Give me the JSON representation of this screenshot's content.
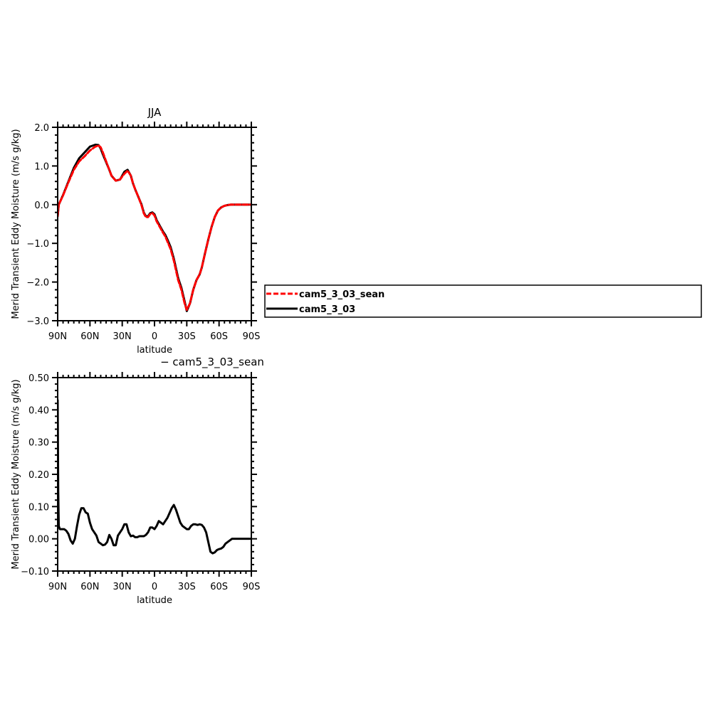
{
  "chart_data": [
    {
      "type": "line",
      "title": "JJA",
      "xlabel": "latitude",
      "ylabel": "Merid Transient Eddy Moisture (m/s g/kg)",
      "xlim": [
        90,
        -90
      ],
      "ylim": [
        -3.0,
        2.0
      ],
      "xticks": [
        90,
        60,
        30,
        0,
        -30,
        -60,
        -90
      ],
      "xtick_labels": [
        "90N",
        "60N",
        "30N",
        "0",
        "30S",
        "60S",
        "90S"
      ],
      "yticks": [
        -3.0,
        -2.0,
        -1.0,
        0.0,
        1.0,
        2.0
      ],
      "ytick_labels": [
        "−3.0",
        "−2.0",
        "−1.0",
        "0.0",
        "1.0",
        "2.0"
      ],
      "legend": "right",
      "series": [
        {
          "name": "cam5_3_03",
          "color": "#000000",
          "x": [
            90,
            89,
            85,
            80,
            75,
            70,
            65,
            60,
            55,
            52,
            50,
            48,
            45,
            42,
            40,
            36,
            32,
            30,
            28,
            25,
            22,
            20,
            18,
            15,
            12,
            10,
            8,
            6,
            4,
            2,
            0,
            -2,
            -4,
            -6,
            -8,
            -10,
            -12,
            -15,
            -18,
            -20,
            -22,
            -25,
            -28,
            -30,
            -33,
            -36,
            -39,
            -42,
            -44,
            -47,
            -50,
            -53,
            -56,
            -59,
            -62,
            -65,
            -68,
            -71,
            -74,
            -77,
            -80,
            -83,
            -86,
            -90
          ],
          "y": [
            -0.3,
            0.0,
            0.25,
            0.6,
            0.95,
            1.2,
            1.35,
            1.5,
            1.55,
            1.54,
            1.45,
            1.3,
            1.1,
            0.9,
            0.75,
            0.62,
            0.65,
            0.75,
            0.85,
            0.9,
            0.75,
            0.55,
            0.4,
            0.2,
            0.0,
            -0.2,
            -0.3,
            -0.3,
            -0.22,
            -0.2,
            -0.25,
            -0.4,
            -0.5,
            -0.6,
            -0.7,
            -0.78,
            -0.9,
            -1.1,
            -1.4,
            -1.65,
            -1.9,
            -2.15,
            -2.5,
            -2.75,
            -2.55,
            -2.2,
            -1.95,
            -1.8,
            -1.62,
            -1.25,
            -0.9,
            -0.58,
            -0.32,
            -0.15,
            -0.07,
            -0.03,
            -0.01,
            0.0,
            0.0,
            0.0,
            0.0,
            0.0,
            0.0,
            0.0
          ]
        },
        {
          "name": "cam5_3_03_sean",
          "color": "#ff0000",
          "dash": true,
          "x": [
            90,
            89,
            85,
            80,
            75,
            70,
            65,
            60,
            55,
            52,
            50,
            48,
            45,
            42,
            40,
            36,
            32,
            30,
            28,
            25,
            22,
            20,
            18,
            15,
            12,
            10,
            8,
            6,
            4,
            2,
            0,
            -2,
            -4,
            -6,
            -8,
            -10,
            -12,
            -15,
            -18,
            -20,
            -22,
            -25,
            -28,
            -30,
            -33,
            -36,
            -39,
            -42,
            -44,
            -47,
            -50,
            -53,
            -56,
            -59,
            -62,
            -65,
            -68,
            -71,
            -74,
            -77,
            -80,
            -83,
            -86,
            -90
          ],
          "y": [
            -0.3,
            0.0,
            0.24,
            0.58,
            0.9,
            1.12,
            1.25,
            1.4,
            1.5,
            1.53,
            1.48,
            1.35,
            1.12,
            0.9,
            0.75,
            0.62,
            0.65,
            0.73,
            0.8,
            0.88,
            0.75,
            0.55,
            0.4,
            0.2,
            -0.02,
            -0.22,
            -0.32,
            -0.32,
            -0.24,
            -0.22,
            -0.28,
            -0.43,
            -0.53,
            -0.63,
            -0.73,
            -0.82,
            -0.95,
            -1.15,
            -1.45,
            -1.7,
            -1.95,
            -2.2,
            -2.55,
            -2.72,
            -2.55,
            -2.2,
            -1.95,
            -1.8,
            -1.62,
            -1.25,
            -0.9,
            -0.58,
            -0.32,
            -0.15,
            -0.07,
            -0.03,
            -0.01,
            0.0,
            0.0,
            0.0,
            0.0,
            0.0,
            0.0,
            0.0
          ]
        }
      ]
    },
    {
      "type": "line",
      "title": "− cam5_3_03_sean",
      "xlabel": "latitude",
      "ylabel": "Merid Transient Eddy Moisture (m/s g/kg)",
      "xlim": [
        90,
        -90
      ],
      "ylim": [
        -0.1,
        0.5
      ],
      "xticks": [
        90,
        60,
        30,
        0,
        -30,
        -60,
        -90
      ],
      "xtick_labels": [
        "90N",
        "60N",
        "30N",
        "0",
        "30S",
        "60S",
        "90S"
      ],
      "yticks": [
        -0.1,
        0.0,
        0.1,
        0.2,
        0.3,
        0.4,
        0.5
      ],
      "ytick_labels": [
        "−0.10",
        "0.00",
        "0.10",
        "0.20",
        "0.30",
        "0.40",
        "0.50"
      ],
      "series": [
        {
          "color": "#000000",
          "x": [
            90,
            89.5,
            89,
            88,
            86,
            84,
            82,
            80,
            78,
            76,
            74,
            72,
            70,
            68,
            66,
            64,
            62,
            60,
            58,
            56,
            54,
            52,
            50,
            48,
            46,
            44,
            42,
            40,
            38,
            36,
            34,
            32,
            30,
            28,
            26,
            24,
            22,
            20,
            18,
            16,
            14,
            12,
            10,
            8,
            6,
            4,
            2,
            0,
            -2,
            -4,
            -6,
            -8,
            -10,
            -12,
            -14,
            -16,
            -18,
            -20,
            -22,
            -24,
            -26,
            -28,
            -30,
            -32,
            -34,
            -36,
            -38,
            -40,
            -42,
            -44,
            -46,
            -48,
            -50,
            -52,
            -54,
            -56,
            -58,
            -60,
            -62,
            -64,
            -66,
            -68,
            -70,
            -72,
            -74,
            -76,
            -78,
            -80,
            -82,
            -84,
            -86,
            -88,
            -90
          ],
          "y": [
            0.43,
            0.15,
            0.04,
            0.03,
            0.03,
            0.03,
            0.025,
            0.015,
            -0.005,
            -0.015,
            0.0,
            0.04,
            0.075,
            0.095,
            0.095,
            0.082,
            0.078,
            0.05,
            0.03,
            0.02,
            0.01,
            -0.01,
            -0.015,
            -0.02,
            -0.018,
            -0.01,
            0.012,
            0.0,
            -0.02,
            -0.02,
            0.01,
            0.02,
            0.03,
            0.045,
            0.045,
            0.02,
            0.008,
            0.01,
            0.005,
            0.005,
            0.008,
            0.008,
            0.008,
            0.012,
            0.02,
            0.035,
            0.035,
            0.03,
            0.04,
            0.055,
            0.05,
            0.045,
            0.055,
            0.065,
            0.08,
            0.095,
            0.105,
            0.09,
            0.07,
            0.05,
            0.04,
            0.035,
            0.03,
            0.03,
            0.04,
            0.045,
            0.045,
            0.043,
            0.045,
            0.043,
            0.035,
            0.02,
            -0.01,
            -0.04,
            -0.045,
            -0.042,
            -0.035,
            -0.032,
            -0.03,
            -0.025,
            -0.015,
            -0.01,
            -0.005,
            0.0,
            0.0,
            0.0,
            0.0,
            0.0,
            0.0,
            0.0,
            0.0,
            0.0,
            0.0
          ]
        }
      ]
    }
  ]
}
